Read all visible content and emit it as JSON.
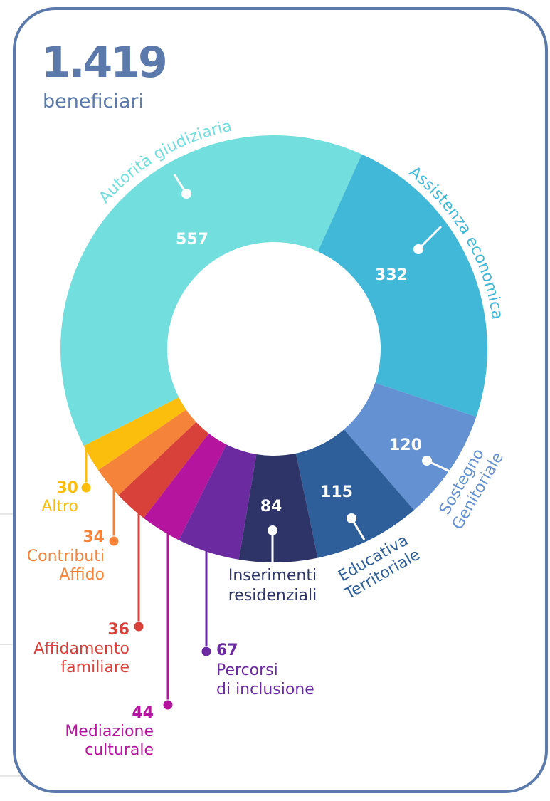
{
  "chart_data": {
    "type": "donut",
    "title": "1.419",
    "subtitle": "beneficiari",
    "categories": [
      "Autorità giudiziaria",
      "Assistenza economica",
      "Sostegno\nGenitoriale",
      "Educativa\nTerritoriale",
      "Inserimenti\nresidenziali",
      "Percorsi\ndi inclusione",
      "Mediazione\nculturale",
      "Affidamento\nfamiliare",
      "Contributi\nAffido",
      "Altro"
    ],
    "values": [
      557,
      332,
      120,
      115,
      84,
      67,
      44,
      36,
      34,
      30
    ],
    "colors": [
      "#72dede",
      "#42b8d8",
      "#6391d2",
      "#2e5f9a",
      "#2f3468",
      "#6c2aa0",
      "#b5149e",
      "#d8413a",
      "#f5843a",
      "#fbbe0c"
    ]
  }
}
